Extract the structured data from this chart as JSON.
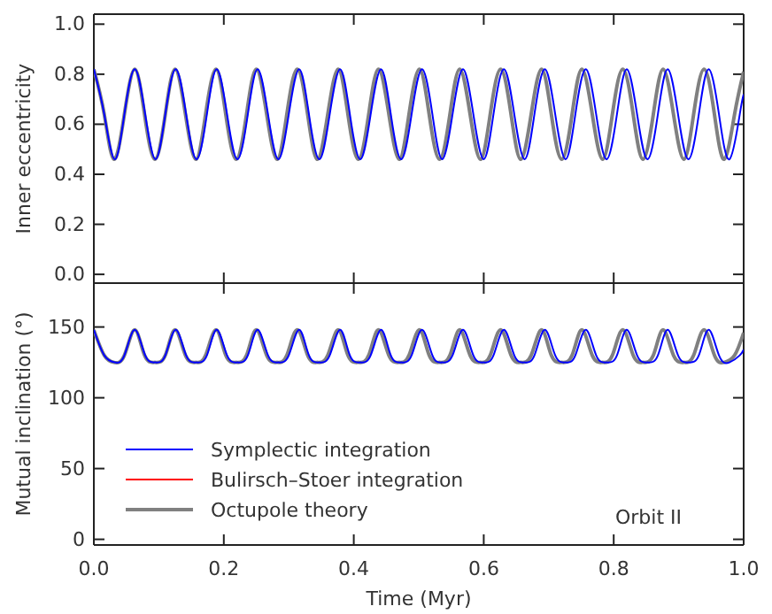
{
  "chart_data": [
    {
      "type": "line",
      "ylabel": "Inner eccentricity",
      "xlim": [
        0,
        1
      ],
      "xticks": [
        0,
        0.2,
        0.4,
        0.6,
        0.8,
        1
      ],
      "ylim": [
        -0.035,
        1.04
      ],
      "yticks": [
        {
          "value": 0,
          "label": "0.0"
        },
        {
          "value": 0.2,
          "label": "0.2"
        },
        {
          "value": 0.4,
          "label": "0.4"
        },
        {
          "value": 0.6,
          "label": "0.6"
        },
        {
          "value": 0.8,
          "label": "0.8"
        },
        {
          "value": 1,
          "label": "1.0"
        }
      ],
      "tick_labels": "y",
      "legend": false,
      "series": [
        {
          "color": "#808080",
          "x": [
            0,
            0.016,
            0.031,
            0.047,
            0.063,
            0.078,
            0.094,
            0.11,
            0.125,
            0.141,
            0.157,
            0.172,
            0.188,
            0.203,
            0.219,
            0.235,
            0.25,
            0.266,
            0.282,
            0.297,
            0.313,
            0.329,
            0.344,
            0.36,
            0.376,
            0.391,
            0.407,
            0.423,
            0.438,
            0.454,
            0.47,
            0.485,
            0.501,
            0.516,
            0.532,
            0.548,
            0.563,
            0.579,
            0.595,
            0.61,
            0.626,
            0.642,
            0.657,
            0.673,
            0.689,
            0.704,
            0.72,
            0.736,
            0.751,
            0.767,
            0.783,
            0.798,
            0.814,
            0.83,
            0.845,
            0.861,
            0.876,
            0.892,
            0.908,
            0.923,
            0.939,
            0.955,
            0.97,
            0.986,
            1
          ],
          "values": [
            0.82,
            0.64,
            0.46,
            0.64,
            0.82,
            0.64,
            0.46,
            0.64,
            0.82,
            0.64,
            0.46,
            0.64,
            0.82,
            0.64,
            0.46,
            0.64,
            0.82,
            0.64,
            0.46,
            0.64,
            0.82,
            0.64,
            0.46,
            0.64,
            0.82,
            0.64,
            0.46,
            0.64,
            0.82,
            0.64,
            0.46,
            0.64,
            0.82,
            0.64,
            0.46,
            0.64,
            0.82,
            0.64,
            0.46,
            0.64,
            0.82,
            0.64,
            0.46,
            0.64,
            0.82,
            0.64,
            0.46,
            0.64,
            0.82,
            0.64,
            0.46,
            0.64,
            0.82,
            0.64,
            0.46,
            0.64,
            0.82,
            0.64,
            0.46,
            0.64,
            0.82,
            0.64,
            0.46,
            0.64,
            0.81
          ]
        },
        {
          "color": "#ff0000",
          "values": [
            null
          ]
        },
        {
          "color": "#0000ff",
          "x": [
            0,
            0.016,
            0.032,
            0.047,
            0.063,
            0.079,
            0.095,
            0.11,
            0.126,
            0.142,
            0.158,
            0.174,
            0.189,
            0.205,
            0.221,
            0.237,
            0.252,
            0.268,
            0.284,
            0.3,
            0.316,
            0.331,
            0.347,
            0.363,
            0.379,
            0.394,
            0.41,
            0.426,
            0.442,
            0.457,
            0.473,
            0.489,
            0.505,
            0.521,
            0.536,
            0.552,
            0.568,
            0.584,
            0.6,
            0.615,
            0.631,
            0.647,
            0.663,
            0.678,
            0.694,
            0.71,
            0.726,
            0.741,
            0.757,
            0.773,
            0.789,
            0.805,
            0.82,
            0.836,
            0.852,
            0.868,
            0.883,
            0.899,
            0.915,
            0.931,
            0.946,
            0.962,
            0.978,
            0.994,
            1
          ],
          "values": [
            0.82,
            0.64,
            0.46,
            0.64,
            0.82,
            0.64,
            0.46,
            0.64,
            0.82,
            0.64,
            0.46,
            0.64,
            0.82,
            0.64,
            0.46,
            0.64,
            0.82,
            0.64,
            0.46,
            0.64,
            0.82,
            0.64,
            0.46,
            0.64,
            0.82,
            0.64,
            0.46,
            0.64,
            0.82,
            0.64,
            0.46,
            0.64,
            0.82,
            0.64,
            0.46,
            0.64,
            0.82,
            0.64,
            0.46,
            0.64,
            0.82,
            0.64,
            0.46,
            0.64,
            0.82,
            0.64,
            0.46,
            0.64,
            0.82,
            0.64,
            0.46,
            0.64,
            0.82,
            0.64,
            0.46,
            0.64,
            0.82,
            0.64,
            0.46,
            0.64,
            0.82,
            0.64,
            0.46,
            0.64,
            0.72
          ]
        }
      ]
    },
    {
      "type": "line",
      "ylabel": "Mutual inclination (°)",
      "xlabel": "Time (Myr)",
      "xlim": [
        0,
        1
      ],
      "xticks": [
        {
          "value": 0,
          "label": "0.0"
        },
        {
          "value": 0.2,
          "label": "0.2"
        },
        {
          "value": 0.4,
          "label": "0.4"
        },
        {
          "value": 0.6,
          "label": "0.6"
        },
        {
          "value": 0.8,
          "label": "0.8"
        },
        {
          "value": 1,
          "label": "1.0"
        }
      ],
      "ylim": [
        -4,
        181
      ],
      "yticks": [
        0,
        50,
        100,
        150
      ],
      "legend": "bottom left",
      "annotations": [
        "Orbit II"
      ],
      "series": [
        {
          "name": "Octupole theory",
          "color": "#808080",
          "x": [
            0,
            0.016,
            0.031,
            0.047,
            0.063,
            0.078,
            0.094,
            0.11,
            0.125,
            0.141,
            0.157,
            0.172,
            0.188,
            0.203,
            0.219,
            0.235,
            0.25,
            0.266,
            0.282,
            0.297,
            0.313,
            0.329,
            0.344,
            0.36,
            0.376,
            0.391,
            0.407,
            0.423,
            0.438,
            0.454,
            0.47,
            0.485,
            0.501,
            0.516,
            0.532,
            0.548,
            0.563,
            0.579,
            0.595,
            0.61,
            0.626,
            0.642,
            0.657,
            0.673,
            0.689,
            0.704,
            0.72,
            0.736,
            0.751,
            0.767,
            0.783,
            0.798,
            0.814,
            0.83,
            0.845,
            0.861,
            0.876,
            0.892,
            0.908,
            0.923,
            0.939,
            0.955,
            0.97,
            0.986,
            1
          ],
          "values": [
            148,
            130,
            125,
            130,
            148,
            130,
            125,
            130,
            148,
            130,
            125,
            130,
            148,
            130,
            125,
            130,
            148,
            130,
            125,
            130,
            148,
            130,
            125,
            130,
            148,
            130,
            125,
            130,
            148,
            130,
            125,
            130,
            148,
            130,
            125,
            130,
            148,
            130,
            125,
            130,
            148,
            130,
            125,
            130,
            148,
            130,
            125,
            130,
            148,
            130,
            125,
            130,
            148,
            130,
            125,
            130,
            148,
            130,
            125,
            130,
            148,
            130,
            125,
            130,
            146
          ]
        },
        {
          "name": "Bulirsch–Stoer integration",
          "color": "#ff0000",
          "values": [
            null
          ]
        },
        {
          "name": "Symplectic integration",
          "color": "#0000ff",
          "x": [
            0,
            0.016,
            0.032,
            0.047,
            0.063,
            0.079,
            0.095,
            0.11,
            0.126,
            0.142,
            0.158,
            0.174,
            0.189,
            0.205,
            0.221,
            0.237,
            0.252,
            0.268,
            0.284,
            0.3,
            0.316,
            0.331,
            0.347,
            0.363,
            0.379,
            0.394,
            0.41,
            0.426,
            0.442,
            0.457,
            0.473,
            0.489,
            0.505,
            0.521,
            0.536,
            0.552,
            0.568,
            0.584,
            0.6,
            0.615,
            0.631,
            0.647,
            0.663,
            0.678,
            0.694,
            0.71,
            0.726,
            0.741,
            0.757,
            0.773,
            0.789,
            0.805,
            0.82,
            0.836,
            0.852,
            0.868,
            0.883,
            0.899,
            0.915,
            0.931,
            0.946,
            0.962,
            0.978,
            0.994,
            1
          ],
          "values": [
            148,
            130,
            125,
            130,
            148,
            130,
            125,
            130,
            148,
            130,
            125,
            130,
            148,
            130,
            125,
            130,
            148,
            130,
            125,
            130,
            148,
            130,
            125,
            130,
            148,
            130,
            125,
            130,
            148,
            130,
            125,
            130,
            148,
            130,
            125,
            130,
            148,
            130,
            125,
            130,
            148,
            130,
            125,
            130,
            148,
            130,
            125,
            130,
            148,
            130,
            125,
            130,
            148,
            130,
            125,
            130,
            148,
            130,
            125,
            130,
            148,
            130,
            125,
            130,
            134
          ]
        }
      ]
    }
  ]
}
